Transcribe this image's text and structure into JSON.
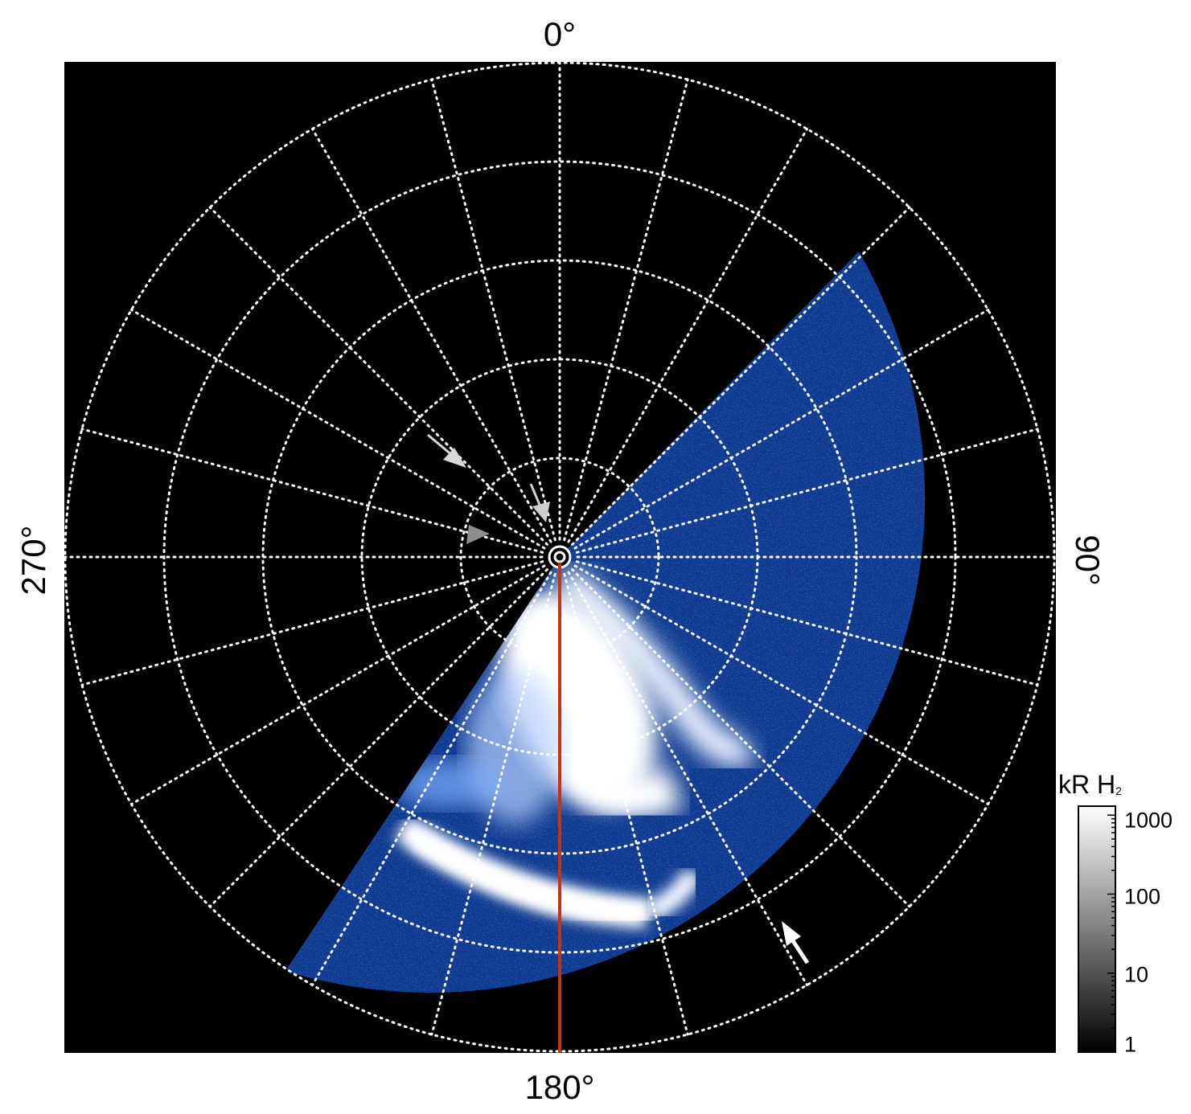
{
  "figure": {
    "azimuth_labels": {
      "top": "0°",
      "right": "90°",
      "bottom": "180°",
      "left": "270°"
    },
    "colorbar": {
      "title": "kR H",
      "title_subscript": "2",
      "ticks": [
        {
          "value": 1000,
          "label": "1000"
        },
        {
          "value": 100,
          "label": "100"
        },
        {
          "value": 10,
          "label": "10"
        },
        {
          "value": 1,
          "label": "1"
        }
      ],
      "scale": "log",
      "gradient": [
        "#000000",
        "#ffffff"
      ]
    },
    "grid": {
      "style": "dotted",
      "color": "#ffffff",
      "rings": 5,
      "meridian_step_deg": 15
    },
    "emission_colors": {
      "background": "#000000",
      "low": "#0a2a7a",
      "mid": "#1f6fe0",
      "high": "#ffffff"
    },
    "meridian_line_color": "#c8340f",
    "arrows": [
      {
        "color": "#d8d8d8",
        "points_to": "grey-arrow-1"
      },
      {
        "color": "#cfcfcf",
        "points_to": "grey-arrow-2"
      },
      {
        "color": "#8e8e8e",
        "points_to": "grey-arrow-3"
      },
      {
        "color": "#ffffff",
        "points_to": "white-arrow"
      }
    ]
  }
}
